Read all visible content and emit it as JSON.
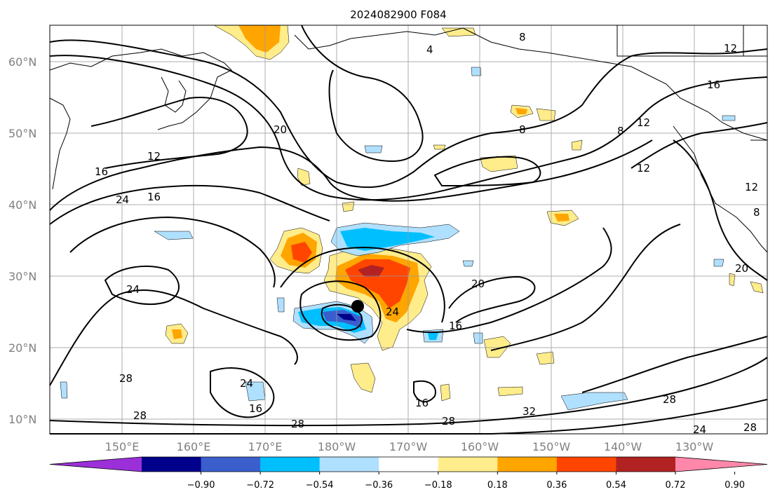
{
  "title": "2024082900 F084",
  "lat_labels": [
    "60°N",
    "50°N",
    "40°N",
    "30°N",
    "20°N",
    "10°N"
  ],
  "lon_labels": [
    "150°E",
    "160°E",
    "170°E",
    "180°W",
    "170°W",
    "160°W",
    "150°W",
    "140°W",
    "130°W"
  ],
  "contour_labels": [
    "4",
    "8",
    "8",
    "8",
    "8",
    "12",
    "12",
    "12",
    "12",
    "12",
    "16",
    "16",
    "16",
    "16",
    "16",
    "16",
    "20",
    "20",
    "20",
    "24",
    "24",
    "24",
    "24",
    "28",
    "28",
    "28",
    "28",
    "28",
    "32",
    "24",
    "28"
  ],
  "colorbar": {
    "ticks": [
      "−0.90",
      "−0.72",
      "−0.54",
      "−0.36",
      "−0.18",
      "0.18",
      "0.36",
      "0.54",
      "0.72",
      "0.90"
    ],
    "colors": [
      "#9b30d9",
      "#00008b",
      "#3a5fcd",
      "#00bfff",
      "#b0e0ff",
      "#ffffff",
      "#ffec8b",
      "#ffa500",
      "#ff4500",
      "#b22222",
      "#ff88aa"
    ]
  },
  "storm_marker": "storm-center"
}
